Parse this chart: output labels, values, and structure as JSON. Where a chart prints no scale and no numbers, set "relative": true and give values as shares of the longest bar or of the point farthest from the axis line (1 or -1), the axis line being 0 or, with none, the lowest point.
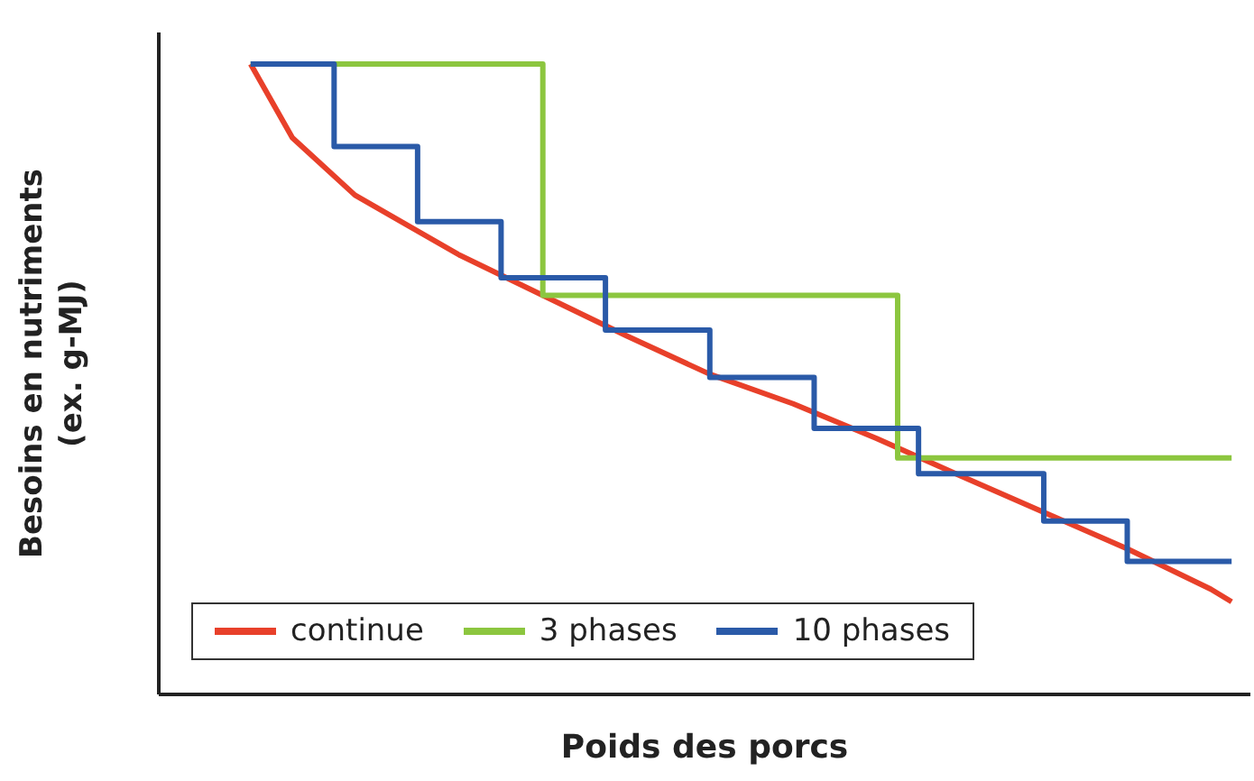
{
  "chart_data": {
    "type": "line",
    "relative": true,
    "xlabel": "Poids des porcs",
    "ylabel": "Besoins en nutriments\n(ex. g-MJ)",
    "legend": "bottom left",
    "categories": [
      null,
      null,
      null,
      null,
      null,
      null,
      null,
      null,
      null,
      null,
      null,
      null,
      null,
      null,
      null,
      null,
      null,
      null,
      null,
      null,
      null,
      null,
      null,
      null,
      null,
      null,
      null,
      null,
      null,
      null,
      null,
      null,
      null,
      null,
      null,
      null,
      null,
      null,
      null,
      null,
      null,
      null,
      null,
      null,
      null,
      null,
      null,
      null
    ],
    "series": [
      {
        "name": "continue",
        "color": "#e8402a",
        "values": [
          1,
          null,
          0.883,
          null,
          null,
          0.792,
          null,
          null,
          null,
          null,
          0.697,
          null,
          null,
          null,
          0.633,
          null,
          null,
          null,
          0.569,
          null,
          null,
          null,
          0.508,
          null,
          null,
          null,
          0.461,
          null,
          null,
          null,
          0.406,
          null,
          null,
          null,
          0.347,
          null,
          null,
          null,
          0.289,
          null,
          null,
          null,
          0.231,
          null,
          null,
          null,
          0.167,
          0.147
        ]
      },
      {
        "name": "3 phases",
        "type": "step",
        "color": "#8cc63f",
        "values": [
          1,
          null,
          null,
          null,
          null,
          null,
          null,
          null,
          null,
          null,
          null,
          null,
          null,
          null,
          0.633,
          null,
          null,
          null,
          null,
          null,
          null,
          null,
          null,
          null,
          null,
          null,
          null,
          null,
          null,
          null,
          null,
          0.375,
          null,
          null,
          null,
          null,
          null,
          null,
          null,
          null,
          null,
          null,
          null,
          null,
          null,
          null,
          null,
          0.375
        ]
      },
      {
        "name": "10 phases",
        "type": "step",
        "color": "#2a5aa8",
        "values": [
          1,
          null,
          null,
          null,
          0.869,
          null,
          null,
          null,
          0.75,
          null,
          null,
          null,
          0.661,
          null,
          null,
          null,
          null,
          0.578,
          null,
          null,
          null,
          null,
          0.503,
          null,
          null,
          null,
          null,
          0.422,
          null,
          null,
          null,
          null,
          0.35,
          null,
          null,
          null,
          null,
          null,
          0.275,
          null,
          null,
          null,
          0.211,
          null,
          null,
          null,
          null,
          0.211
        ]
      }
    ]
  }
}
